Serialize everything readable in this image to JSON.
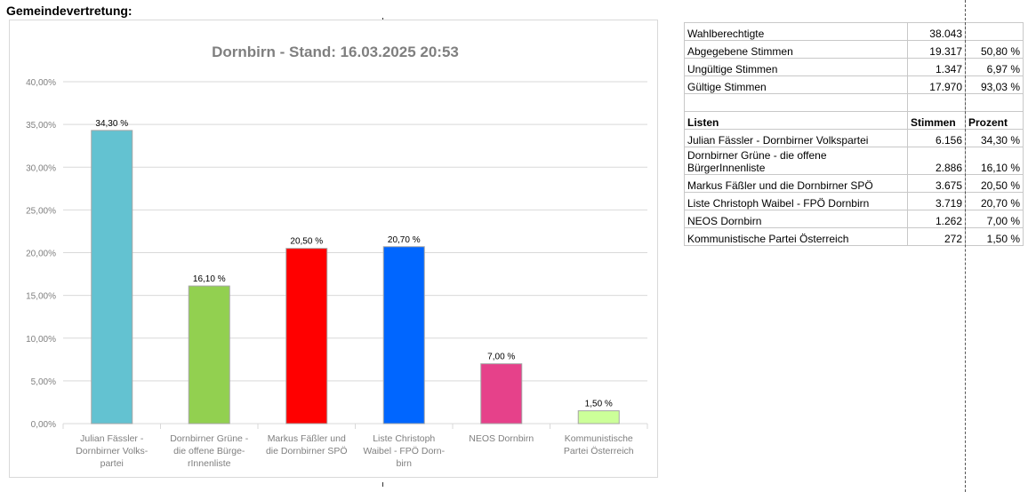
{
  "sheet": {
    "heading": "Gemeindevertretung:"
  },
  "chart_data": {
    "type": "bar",
    "title": "Dornbirn - Stand: 16.03.2025 20:53",
    "categories": [
      "Julian Fässler - Dornbirner Volks-partei",
      "Dornbirner Grüne - die offene Bürge-rInnenliste",
      "Markus Fäßler und die Dornbirner SPÖ",
      "Liste Christoph Waibel - FPÖ Dorn-birn",
      "NEOS Dornbirn",
      "Kommunistische Partei Österreich"
    ],
    "category_lines": [
      [
        "Julian Fässler -",
        "Dornbirner Volks-",
        "partei"
      ],
      [
        "Dornbirner Grüne -",
        "die offene Bürge-",
        "rInnenliste"
      ],
      [
        "Markus Fäßler und",
        "die Dornbirner SPÖ"
      ],
      [
        "Liste Christoph",
        "Waibel - FPÖ Dorn-",
        "birn"
      ],
      [
        "NEOS Dornbirn"
      ],
      [
        "Kommunistische",
        "Partei Österreich"
      ]
    ],
    "values": [
      34.3,
      16.1,
      20.5,
      20.7,
      7.0,
      1.5
    ],
    "data_labels": [
      "34,30 %",
      "16,10 %",
      "20,50 %",
      "20,70 %",
      "7,00 %",
      "1,50 %"
    ],
    "colors": [
      "#63c2d1",
      "#92d050",
      "#ff0000",
      "#0066ff",
      "#e6418a",
      "#ccff99"
    ],
    "ylim": [
      0,
      40
    ],
    "yticks": [
      0,
      5,
      10,
      15,
      20,
      25,
      30,
      35,
      40
    ],
    "ytick_labels": [
      "0,00%",
      "5,00%",
      "10,00%",
      "15,00%",
      "20,00%",
      "25,00%",
      "30,00%",
      "35,00%",
      "40,00%"
    ],
    "grid": true,
    "xlabel": "",
    "ylabel": ""
  },
  "table": {
    "summary": [
      {
        "label": "Wahlberechtigte",
        "value": "38.043",
        "pct": ""
      },
      {
        "label": "Abgegebene Stimmen",
        "value": "19.317",
        "pct": "50,80 %"
      },
      {
        "label": "Ungültige Stimmen",
        "value": "1.347",
        "pct": "6,97 %"
      },
      {
        "label": "Gültige Stimmen",
        "value": "17.970",
        "pct": "93,03 %"
      }
    ],
    "header": {
      "list": "Listen",
      "votes": "Stimmen",
      "pct": "Prozent"
    },
    "rows": [
      {
        "label": "Julian Fässler - Dornbirner Volkspartei",
        "value": "6.156",
        "pct": "34,30 %"
      },
      {
        "label": "Dornbirner Grüne - die offene BürgerInnenliste",
        "value": "2.886",
        "pct": "16,10 %"
      },
      {
        "label": "Markus Fäßler und die Dornbirner SPÖ",
        "value": "3.675",
        "pct": "20,50 %"
      },
      {
        "label": "Liste Christoph Waibel - FPÖ Dornbirn",
        "value": "3.719",
        "pct": "20,70 %"
      },
      {
        "label": "NEOS Dornbirn",
        "value": "1.262",
        "pct": "7,00 %"
      },
      {
        "label": "Kommunistische Partei Österreich",
        "value": "272",
        "pct": "1,50 %"
      }
    ]
  }
}
